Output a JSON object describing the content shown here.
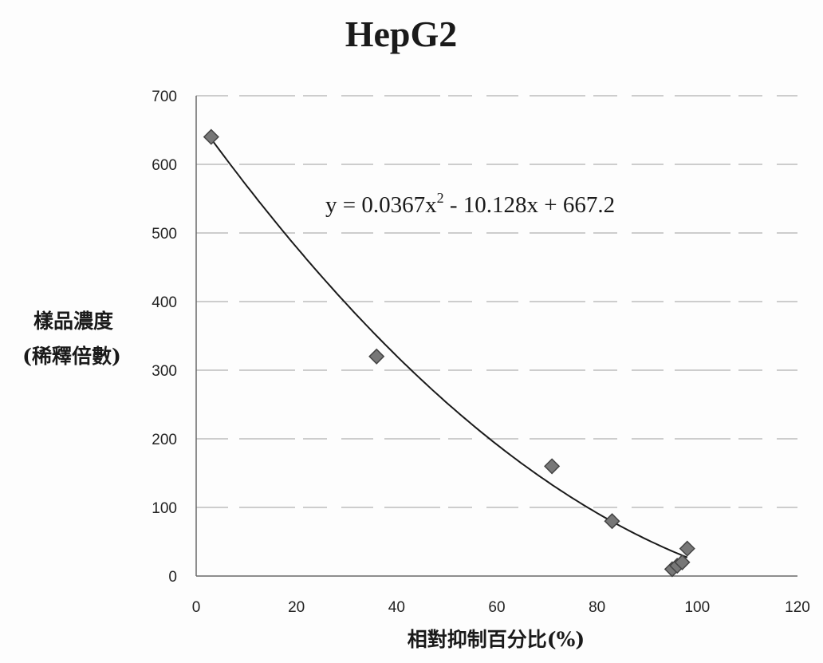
{
  "chart_data": {
    "type": "scatter",
    "title": "HepG2",
    "xlabel": "相對抑制百分比(%)",
    "ylabel_line1": "樣品濃度",
    "ylabel_line2": "(稀釋倍數)",
    "xlim": [
      0,
      120
    ],
    "ylim": [
      0,
      700
    ],
    "xticks": [
      0,
      20,
      40,
      60,
      80,
      100,
      120
    ],
    "xtick_labels": [
      "0",
      "20",
      "40",
      "60",
      "80",
      "100",
      "120"
    ],
    "yticks": [
      0,
      100,
      200,
      300,
      400,
      500,
      600,
      700
    ],
    "ytick_labels": [
      "0",
      "100",
      "200",
      "300",
      "400",
      "500",
      "600",
      "700"
    ],
    "grid": "horizontal",
    "points": [
      {
        "x": 3,
        "y": 640
      },
      {
        "x": 36,
        "y": 320
      },
      {
        "x": 71,
        "y": 160
      },
      {
        "x": 83,
        "y": 80
      },
      {
        "x": 95,
        "y": 10
      },
      {
        "x": 96,
        "y": 15
      },
      {
        "x": 97,
        "y": 20
      },
      {
        "x": 98,
        "y": 40
      }
    ],
    "trendline": {
      "type": "polynomial",
      "coefficients": [
        0.0367,
        -10.128,
        667.2
      ],
      "x_range": [
        3,
        98
      ]
    },
    "equation_text": {
      "lhs": "y = 0.0367x",
      "exp": "2",
      "rhs": " - 10.128x + 667.2"
    },
    "marker_color": "#777777"
  }
}
